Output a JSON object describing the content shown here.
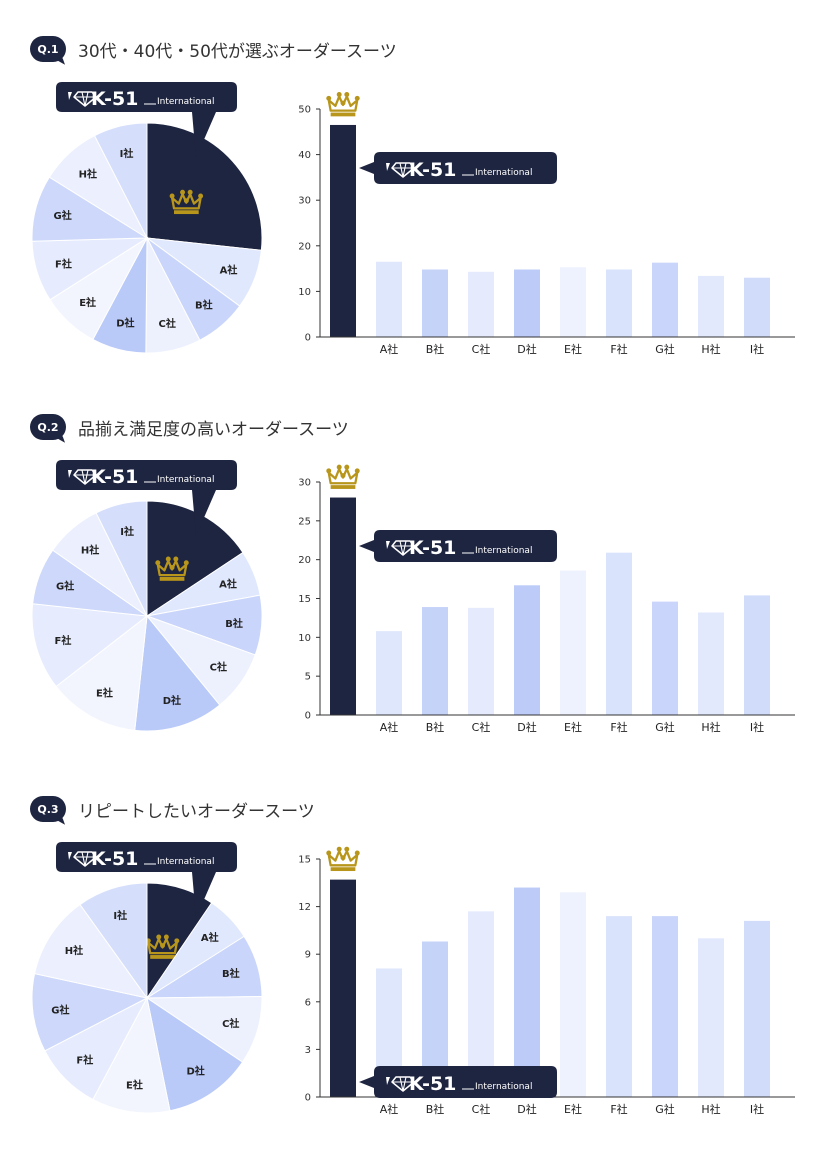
{
  "colors": {
    "navy": "#1e2540",
    "gold": "#b8961c",
    "slices": [
      "#e0e8fd",
      "#c9d5fb",
      "#edf1fe",
      "#b9c9f8",
      "#f3f5fe",
      "#e6ecfd",
      "#cdd8fa",
      "#ebeffe",
      "#d5dffb"
    ],
    "bars": [
      "#dfe7fc",
      "#c6d3f9",
      "#e5ebfd",
      "#bccbf8",
      "#eef2fe",
      "#dae3fc",
      "#c9d5fa",
      "#e2e9fd",
      "#d1dcfb"
    ]
  },
  "brand": {
    "name": "K-51",
    "sub": "International",
    "logo_icon": "diamond-logo-icon",
    "winner_icon": "crown-icon"
  },
  "sections": [
    {
      "badge": "Q.1",
      "title": "30代・40代・50代が選ぶオーダースーツ",
      "chart_data": {
        "type": "bar",
        "categories": [
          "",
          "A社",
          "B社",
          "C社",
          "D社",
          "E社",
          "F社",
          "G社",
          "H社",
          "I社"
        ],
        "values": [
          46.5,
          16.5,
          14.8,
          14.3,
          14.8,
          15.3,
          14.8,
          16.3,
          13.4,
          13.0
        ],
        "highlight": "K-51 International",
        "y_ticks": [
          0,
          10,
          20,
          30,
          40,
          50
        ],
        "ylim": [
          0,
          50
        ],
        "pie_labels": [
          "",
          "A社",
          "B社",
          "C社",
          "D社",
          "E社",
          "F社",
          "G社",
          "H社",
          "I社"
        ],
        "pie_values": [
          25.5,
          8.0,
          7.0,
          7.4,
          7.3,
          7.8,
          8.2,
          8.9,
          8.2,
          7.2
        ]
      }
    },
    {
      "badge": "Q.2",
      "title": "品揃え満足度の高いオーダースーツ",
      "chart_data": {
        "type": "bar",
        "categories": [
          "",
          "A社",
          "B社",
          "C社",
          "D社",
          "E社",
          "F社",
          "G社",
          "H社",
          "I社"
        ],
        "values": [
          28.0,
          10.8,
          13.9,
          13.8,
          16.7,
          18.6,
          20.9,
          14.6,
          13.2,
          15.4
        ],
        "highlight": "K-51 International",
        "y_ticks": [
          0,
          5,
          10,
          15,
          20,
          25,
          30
        ],
        "ylim": [
          0,
          30
        ],
        "pie_labels": [
          "",
          "A社",
          "B社",
          "C社",
          "D社",
          "E社",
          "F社",
          "G社",
          "H社",
          "I社"
        ],
        "pie_values": [
          15.7,
          6.4,
          8.4,
          8.6,
          12.6,
          12.8,
          12.2,
          8.0,
          8.0,
          7.3
        ]
      }
    },
    {
      "badge": "Q.3",
      "title": "リピートしたいオーダースーツ",
      "chart_data": {
        "type": "bar",
        "categories": [
          "",
          "A社",
          "B社",
          "C社",
          "D社",
          "E社",
          "F社",
          "G社",
          "H社",
          "I社"
        ],
        "values": [
          13.7,
          8.1,
          9.8,
          11.7,
          13.2,
          12.9,
          11.4,
          11.4,
          10.0,
          11.1
        ],
        "highlight": "K-51 International",
        "y_ticks": [
          0,
          3,
          6,
          9,
          12,
          15
        ],
        "ylim": [
          0,
          15
        ],
        "pie_labels": [
          "",
          "A社",
          "B社",
          "C社",
          "D社",
          "E社",
          "F社",
          "G社",
          "H社",
          "I社"
        ],
        "pie_values": [
          9.5,
          6.5,
          8.8,
          9.6,
          12.4,
          11.0,
          9.6,
          11.0,
          11.7,
          9.9
        ]
      }
    }
  ]
}
